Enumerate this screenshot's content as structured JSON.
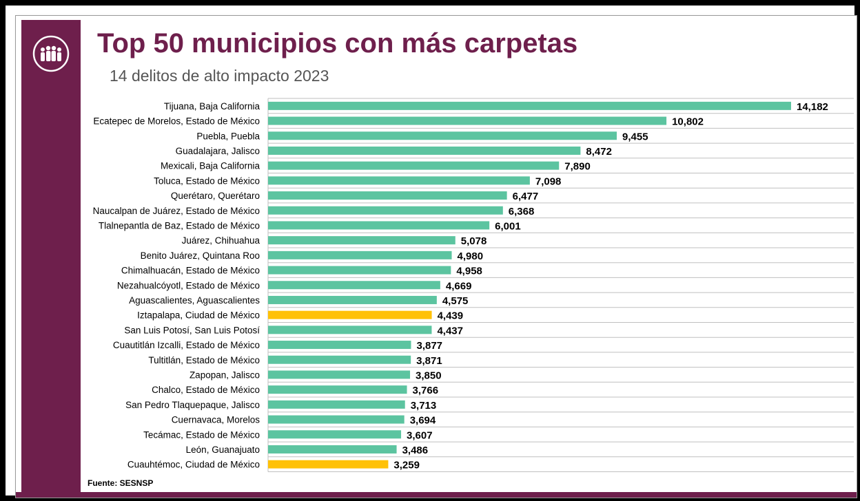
{
  "header": {
    "title": "Top 50 municipios con más carpetas",
    "subtitle": "14 delitos de alto impacto 2023"
  },
  "source": "Fuente: SESNSP",
  "colors": {
    "brand": "#6e1f4c",
    "bar": "#5cc4a0",
    "highlight_bar": "#ffc107",
    "gridline": "#bfbfbf"
  },
  "chart_data": {
    "type": "bar",
    "orientation": "horizontal",
    "categories": [
      "Tijuana, Baja California",
      "Ecatepec de Morelos, Estado de México",
      "Puebla, Puebla",
      "Guadalajara, Jalisco",
      "Mexicali, Baja California",
      "Toluca, Estado de México",
      "Querétaro, Querétaro",
      "Naucalpan de Juárez, Estado de México",
      "Tlalnepantla de Baz, Estado de México",
      "Juárez, Chihuahua",
      "Benito Juárez, Quintana Roo",
      "Chimalhuacán, Estado de México",
      "Nezahualcóyotl, Estado de México",
      "Aguascalientes, Aguascalientes",
      "Iztapalapa, Ciudad de México",
      "San Luis Potosí, San Luis Potosí",
      "Cuautitlán Izcalli, Estado de México",
      "Tultitlán, Estado de México",
      "Zapopan, Jalisco",
      "Chalco, Estado de México",
      "San Pedro Tlaquepaque, Jalisco",
      "Cuernavaca, Morelos",
      "Tecámac, Estado de México",
      "León, Guanajuato",
      "Cuauhtémoc, Ciudad de México"
    ],
    "values": [
      14182,
      10802,
      9455,
      8472,
      7890,
      7098,
      6477,
      6368,
      6001,
      5078,
      4980,
      4958,
      4669,
      4575,
      4439,
      4437,
      3877,
      3871,
      3850,
      3766,
      3713,
      3694,
      3607,
      3486,
      3259
    ],
    "value_labels": [
      "14,182",
      "10,802",
      "9,455",
      "8,472",
      "7,890",
      "7,098",
      "6,477",
      "6,368",
      "6,001",
      "5,078",
      "4,980",
      "4,958",
      "4,669",
      "4,575",
      "4,439",
      "4,437",
      "3,877",
      "3,871",
      "3,850",
      "3,766",
      "3,713",
      "3,694",
      "3,607",
      "3,486",
      "3,259"
    ],
    "highlighted": [
      "Iztapalapa, Ciudad de México",
      "Cuauhtémoc, Ciudad de México"
    ],
    "xlim": [
      0,
      16000
    ],
    "grid": true
  }
}
